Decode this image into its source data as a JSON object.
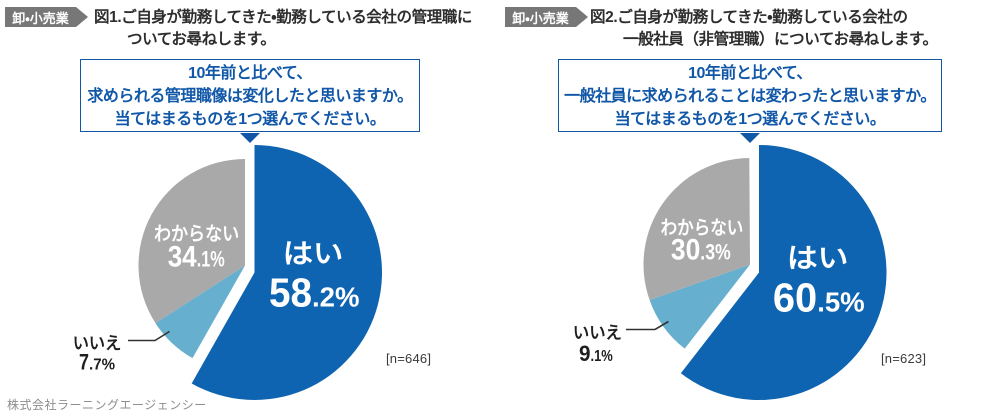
{
  "page": {
    "footer": "株式会社ラーニングエージェンシー",
    "background": "#ffffff"
  },
  "colors": {
    "pie_yes": "#0e64b0",
    "pie_no": "#67afce",
    "pie_unknown": "#a9a9a9",
    "badge_bg": "#777777",
    "badge_text": "#ffffff",
    "question_box_border": "#1157a8",
    "question_text": "#1157a8",
    "title_text": "#2d2d2d",
    "pie_label_light": "#ffffff",
    "pie_label_dark": "#1f1f1f",
    "leader_line": "#333333",
    "n_text": "#3a3a3a",
    "footer_text": "#8e8e8e"
  },
  "panels": [
    {
      "badge": "卸・小売業",
      "title_line1": "図1.ご自身が勤務してきた・勤務している会社の管理職に",
      "title_line2": "ついてお尋ねします。",
      "question_line1": "10年前と比べて、",
      "question_line2": "求められる管理職像は変化したと思いますか。",
      "question_line3": "当てはまるものを1つ選んでください。",
      "n_label": "[n=646]"
    },
    {
      "badge": "卸・小売業",
      "title_line1": "図2.ご自身が勤務してきた・勤務している会社の",
      "title_line2": "一般社員（非管理職）についてお尋ねします。",
      "question_line1": "10年前と比べて、",
      "question_line2": "一般社員に求められることは変わったと思いますか。",
      "question_line3": "当てはまるものを1つ選んでください。",
      "n_label": "[n=623]"
    }
  ],
  "chart_data": [
    {
      "type": "pie",
      "title": "図1.ご自身が勤務してきた・勤務している会社の管理職についてお尋ねします。",
      "question": "10年前と比べて、求められる管理職像は変化したと思いますか。当てはまるものを1つ選んでください。",
      "labels": [
        "はい",
        "いいえ",
        "わからない"
      ],
      "values": [
        58.2,
        7.7,
        34.1
      ],
      "colors": [
        "#0e64b0",
        "#67afce",
        "#a9a9a9"
      ],
      "sample_n": 646,
      "start_angle_deg": 0,
      "direction": "clockwise",
      "emphasized_slice": "はい"
    },
    {
      "type": "pie",
      "title": "図2.ご自身が勤務してきた・勤務している会社の一般社員（非管理職）についてお尋ねします。",
      "question": "10年前と比べて、一般社員に求められることは変わったと思いますか。当てはまるものを1つ選んでください。",
      "labels": [
        "はい",
        "いいえ",
        "わからない"
      ],
      "values": [
        60.5,
        9.1,
        30.3
      ],
      "colors": [
        "#0e64b0",
        "#67afce",
        "#a9a9a9"
      ],
      "sample_n": 623,
      "start_angle_deg": 0,
      "direction": "clockwise",
      "emphasized_slice": "はい"
    }
  ]
}
